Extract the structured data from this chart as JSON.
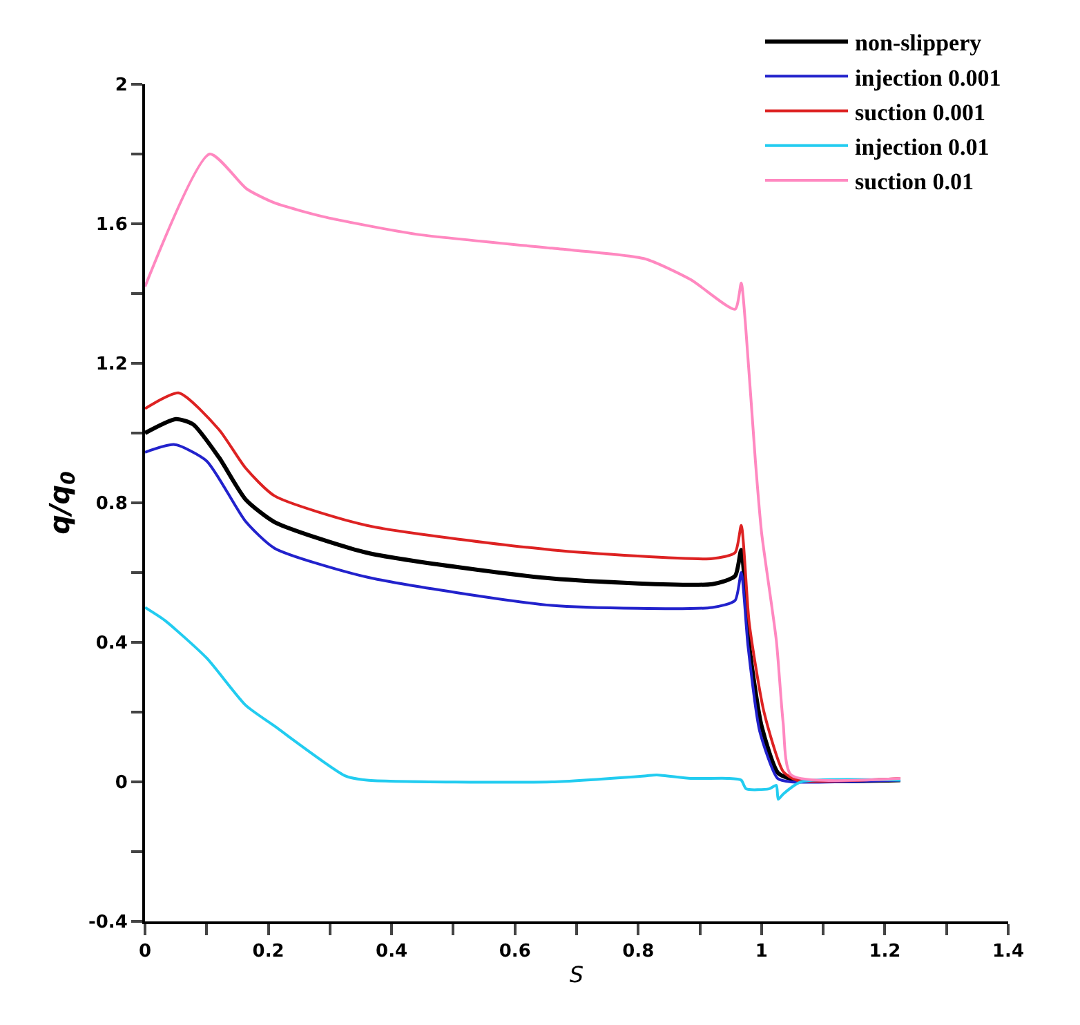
{
  "chart_data": {
    "type": "line",
    "xlabel": "S",
    "ylabel": "q/q$_{0}$",
    "xlim": [
      0,
      1.4
    ],
    "ylim": [
      -0.4,
      2
    ],
    "xticks": [
      0,
      {
        "value": 0.1,
        "label": null
      },
      0.2,
      {
        "value": 0.3,
        "label": null
      },
      0.4,
      {
        "value": 0.5,
        "label": null
      },
      0.6,
      {
        "value": 0.7,
        "label": null
      },
      0.8,
      {
        "value": 0.9,
        "label": null
      },
      1,
      {
        "value": 1.1,
        "label": null
      },
      1.2,
      {
        "value": 1.3,
        "label": null
      },
      1.4
    ],
    "yticks": [
      -0.4,
      {
        "value": -0.2,
        "label": null
      },
      0,
      {
        "value": 0.2,
        "label": null
      },
      0.4,
      {
        "value": 0.6,
        "label": null
      },
      0.8,
      {
        "value": 1.0,
        "label": null
      },
      1.2,
      {
        "value": 1.4,
        "label": null
      },
      1.6,
      {
        "value": 1.8,
        "label": null
      },
      2
    ],
    "legend": "top right",
    "marker": "none",
    "line_style": "solid",
    "series": [
      {
        "name": "non-slippery",
        "color": "#000000",
        "x": [
          0,
          0.05,
          0.078,
          0.12,
          0.163,
          0.21,
          0.36,
          0.66,
          0.92,
          0.957,
          0.967,
          0.98,
          1.0,
          1.027,
          1.057,
          1.225
        ],
        "values": [
          1.0,
          1.04,
          1.025,
          0.93,
          0.81,
          0.745,
          0.657,
          0.583,
          0.567,
          0.59,
          0.665,
          0.39,
          0.16,
          0.025,
          0.005,
          0.005
        ]
      },
      {
        "name": "injection 0.001",
        "color": "#2222cc",
        "x": [
          0,
          0.048,
          0.1,
          0.163,
          0.21,
          0.36,
          0.66,
          0.92,
          0.957,
          0.967,
          0.978,
          0.997,
          1.026,
          1.048,
          1.225
        ],
        "values": [
          0.945,
          0.967,
          0.92,
          0.747,
          0.67,
          0.587,
          0.506,
          0.5,
          0.52,
          0.6,
          0.39,
          0.145,
          0.01,
          0.0,
          0.005
        ]
      },
      {
        "name": "suction 0.001",
        "color": "#dd2222",
        "x": [
          0,
          0.055,
          0.12,
          0.163,
          0.21,
          0.36,
          0.66,
          0.92,
          0.957,
          0.967,
          0.98,
          1.004,
          1.035,
          1.057,
          1.225
        ],
        "values": [
          1.07,
          1.115,
          1.01,
          0.9,
          0.82,
          0.735,
          0.665,
          0.64,
          0.657,
          0.735,
          0.455,
          0.2,
          0.03,
          0.005,
          0.01
        ]
      },
      {
        "name": "injection 0.01",
        "color": "#22ccf0",
        "x": [
          0,
          0.032,
          0.1,
          0.163,
          0.21,
          0.325,
          0.36,
          0.66,
          0.81,
          0.83,
          0.885,
          0.945,
          0.967,
          0.975,
          1.012,
          1.024,
          1.027,
          1.035,
          1.064,
          1.225
        ],
        "values": [
          0.5,
          0.463,
          0.355,
          0.22,
          0.16,
          0.017,
          0.005,
          0.0,
          0.017,
          0.02,
          0.01,
          0.01,
          0.005,
          -0.02,
          -0.02,
          -0.01,
          -0.05,
          -0.035,
          0.0,
          0.005
        ]
      },
      {
        "name": "suction 0.01",
        "color": "#ff88c0",
        "x": [
          0,
          0.105,
          0.165,
          0.21,
          0.29,
          0.44,
          0.66,
          0.81,
          0.885,
          0.957,
          0.967,
          0.974,
          0.99,
          1.0,
          1.024,
          1.035,
          1.048,
          1.225
        ],
        "values": [
          1.42,
          1.8,
          1.7,
          1.66,
          1.62,
          1.57,
          1.53,
          1.5,
          1.44,
          1.355,
          1.43,
          1.31,
          0.92,
          0.715,
          0.405,
          0.17,
          0.02,
          0.01
        ]
      }
    ]
  }
}
